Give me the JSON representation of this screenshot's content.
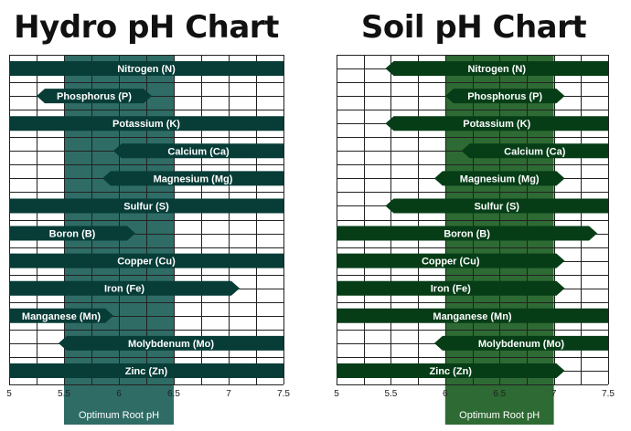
{
  "chart_data": [
    {
      "type": "range-bar",
      "title": "Hydro pH Chart",
      "x_ticks": [
        "5",
        "5.5",
        "6",
        "6.5",
        "7",
        "7.5"
      ],
      "xlim": [
        5,
        7.5
      ],
      "optimum_label": "Optimum Root pH",
      "optimum_range": [
        5.5,
        6.5
      ],
      "bar_color": "#073c37",
      "band_color": "#2f6c66",
      "rows": [
        {
          "name": "Nitrogen  (N)",
          "start": 5.0,
          "end": 7.5,
          "open_start": false,
          "open_end": false
        },
        {
          "name": "Phosphorus (P)",
          "start": 5.25,
          "end": 6.3,
          "open_start": true,
          "open_end": true
        },
        {
          "name": "Potassium (K)",
          "start": 5.0,
          "end": 7.5,
          "open_start": false,
          "open_end": false
        },
        {
          "name": "Calcium (Ca)",
          "start": 5.95,
          "end": 7.5,
          "open_start": true,
          "open_end": false
        },
        {
          "name": "Magnesium (Mg)",
          "start": 5.85,
          "end": 7.5,
          "open_start": true,
          "open_end": false
        },
        {
          "name": "Sulfur (S)",
          "start": 5.0,
          "end": 7.5,
          "open_start": false,
          "open_end": false
        },
        {
          "name": "Boron (B)",
          "start": 5.0,
          "end": 6.15,
          "open_start": false,
          "open_end": true
        },
        {
          "name": "Copper (Cu)",
          "start": 5.0,
          "end": 7.5,
          "open_start": false,
          "open_end": false
        },
        {
          "name": "Iron (Fe)",
          "start": 5.0,
          "end": 7.1,
          "open_start": false,
          "open_end": true
        },
        {
          "name": "Manganese (Mn)",
          "start": 5.0,
          "end": 5.95,
          "open_start": false,
          "open_end": true
        },
        {
          "name": "Molybdenum (Mo)",
          "start": 5.45,
          "end": 7.5,
          "open_start": true,
          "open_end": false
        },
        {
          "name": "Zinc (Zn)",
          "start": 5.0,
          "end": 7.5,
          "open_start": false,
          "open_end": false
        }
      ]
    },
    {
      "type": "range-bar",
      "title": "Soil pH Chart",
      "x_ticks": [
        "5",
        "5.5",
        "6",
        "6.5",
        "7",
        "7.5"
      ],
      "xlim": [
        5,
        7.5
      ],
      "optimum_label": "Optimum Root pH",
      "optimum_range": [
        6.0,
        7.0
      ],
      "bar_color": "#063d17",
      "band_color": "#2e6a33",
      "rows": [
        {
          "name": "Nitrogen  (N)",
          "start": 5.45,
          "end": 7.5,
          "open_start": true,
          "open_end": false
        },
        {
          "name": "Phosphorus (P)",
          "start": 6.0,
          "end": 7.1,
          "open_start": true,
          "open_end": true
        },
        {
          "name": "Potassium (K)",
          "start": 5.45,
          "end": 7.5,
          "open_start": true,
          "open_end": false
        },
        {
          "name": "Calcium (Ca)",
          "start": 6.15,
          "end": 7.5,
          "open_start": true,
          "open_end": false
        },
        {
          "name": "Magnesium (Mg)",
          "start": 5.9,
          "end": 7.1,
          "open_start": true,
          "open_end": true
        },
        {
          "name": "Sulfur (S)",
          "start": 5.45,
          "end": 7.5,
          "open_start": true,
          "open_end": false
        },
        {
          "name": "Boron (B)",
          "start": 5.0,
          "end": 7.4,
          "open_start": false,
          "open_end": true
        },
        {
          "name": "Copper (Cu)",
          "start": 5.0,
          "end": 7.1,
          "open_start": false,
          "open_end": true
        },
        {
          "name": "Iron (Fe)",
          "start": 5.0,
          "end": 7.1,
          "open_start": false,
          "open_end": true
        },
        {
          "name": "Manganese (Mn)",
          "start": 5.0,
          "end": 7.5,
          "open_start": false,
          "open_end": false
        },
        {
          "name": "Molybdenum (Mo)",
          "start": 5.9,
          "end": 7.5,
          "open_start": true,
          "open_end": false
        },
        {
          "name": "Zinc (Zn)",
          "start": 5.0,
          "end": 7.1,
          "open_start": false,
          "open_end": true
        }
      ]
    }
  ]
}
